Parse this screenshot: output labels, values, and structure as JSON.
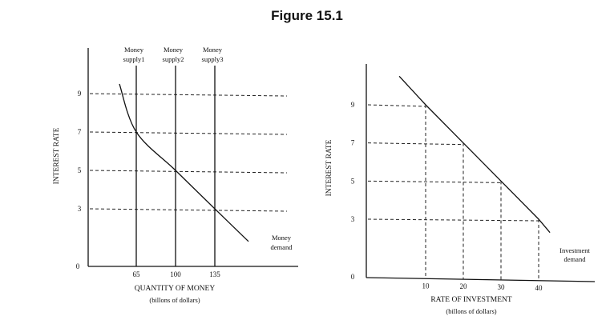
{
  "figure_title": "Figure 15.1",
  "chart_data": [
    {
      "type": "line",
      "xlabel": "QUANTITY OF MONEY",
      "xlabel_sub": "(billons of dollars)",
      "ylabel": "INTEREST RATE",
      "origin_label": "0",
      "xlim": [
        30,
        170
      ],
      "ylim": [
        0,
        10
      ],
      "x_ticks": [
        {
          "value": 65,
          "label": "65"
        },
        {
          "value": 100,
          "label": "100"
        },
        {
          "value": 135,
          "label": "135"
        }
      ],
      "y_ticks": [
        {
          "value": 3,
          "label": "3"
        },
        {
          "value": 5,
          "label": "5"
        },
        {
          "value": 7,
          "label": "7"
        },
        {
          "value": 9,
          "label": "9"
        }
      ],
      "supply_lines": [
        {
          "x": 65,
          "label_lines": [
            "Money",
            "supply1"
          ]
        },
        {
          "x": 100,
          "label_lines": [
            "Money",
            "supply2"
          ]
        },
        {
          "x": 135,
          "label_lines": [
            "Money",
            "supply3"
          ]
        }
      ],
      "demand_curve": {
        "label_lines": [
          "Money",
          "demand"
        ],
        "points": [
          [
            50,
            9.5
          ],
          [
            65,
            7
          ],
          [
            100,
            5
          ],
          [
            135,
            3
          ],
          [
            165,
            1.3
          ]
        ]
      },
      "grid": false
    },
    {
      "type": "line",
      "xlabel": "RATE OF INVESTMENT",
      "xlabel_sub": "(billons of dollars)",
      "ylabel": "INTEREST RATE",
      "origin_label": "0",
      "xlim": [
        -10,
        60
      ],
      "ylim": [
        0,
        10.5
      ],
      "x_ticks": [
        {
          "value": 10,
          "label": "10"
        },
        {
          "value": 20,
          "label": "20"
        },
        {
          "value": 30,
          "label": "30"
        },
        {
          "value": 40,
          "label": "40"
        }
      ],
      "y_ticks": [
        {
          "value": 3,
          "label": "3"
        },
        {
          "value": 5,
          "label": "5"
        },
        {
          "value": 7,
          "label": "7"
        },
        {
          "value": 9,
          "label": "9"
        }
      ],
      "demand_line": {
        "label_lines": [
          "Investment",
          "demand"
        ],
        "points": [
          [
            3,
            10.5
          ],
          [
            10,
            9
          ],
          [
            20,
            7
          ],
          [
            30,
            5
          ],
          [
            40,
            3
          ],
          [
            43,
            2.3
          ]
        ]
      },
      "guide_points": [
        [
          10,
          9
        ],
        [
          20,
          7
        ],
        [
          30,
          5
        ],
        [
          40,
          3
        ]
      ],
      "grid": false
    }
  ]
}
